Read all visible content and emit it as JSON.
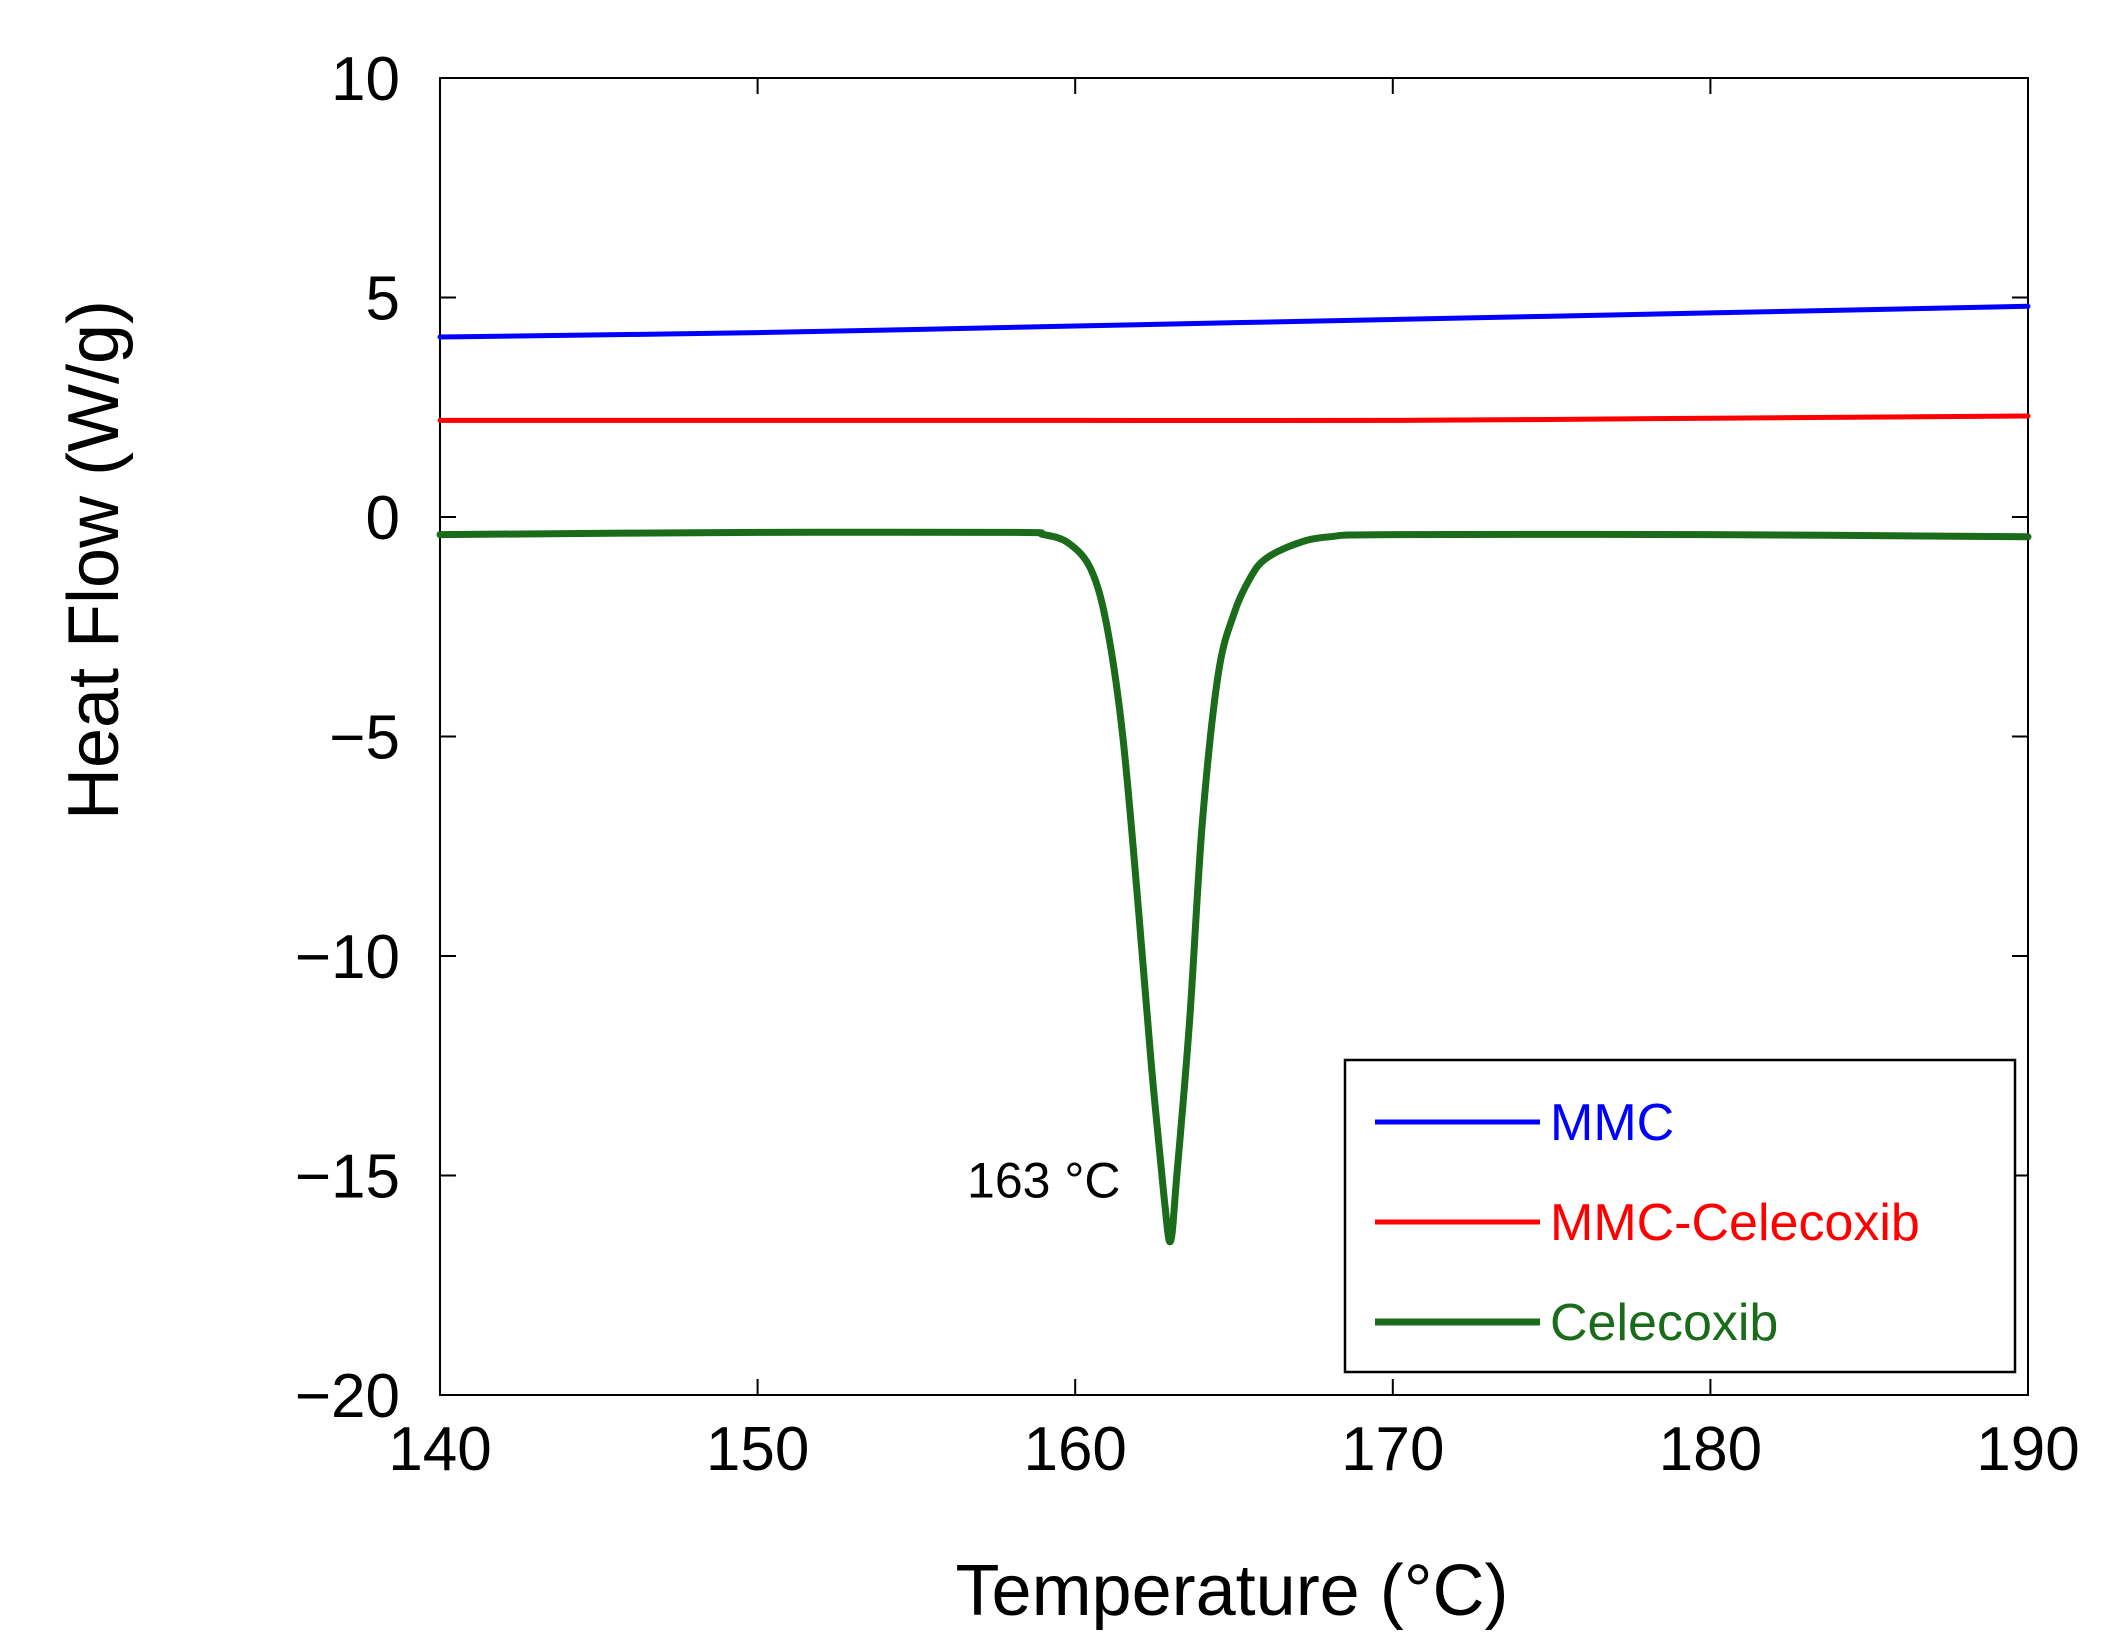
{
  "chart_data": {
    "type": "line",
    "title": "",
    "xlabel": "Temperature (°C)",
    "ylabel": "Heat Flow (W/g)",
    "xlim": [
      140,
      190
    ],
    "ylim": [
      -20,
      10
    ],
    "xticks": [
      140,
      150,
      160,
      170,
      180,
      190
    ],
    "yticks": [
      10,
      5,
      0,
      -5,
      -10,
      -15,
      -20
    ],
    "xtick_labels": [
      "140",
      "150",
      "160",
      "170",
      "180",
      "190"
    ],
    "ytick_labels": [
      "10",
      "5",
      "0",
      "−5",
      "−10",
      "−15",
      "−20"
    ],
    "grid": false,
    "legend_position": "bottom-right",
    "series": [
      {
        "name": "MMC",
        "color": "#0000ff",
        "x": [
          140,
          150,
          160,
          170,
          180,
          190
        ],
        "y": [
          4.1,
          4.2,
          4.35,
          4.5,
          4.65,
          4.8
        ]
      },
      {
        "name": "MMC-Celecoxib",
        "color": "#ff0000",
        "x": [
          140,
          150,
          160,
          170,
          180,
          190
        ],
        "y": [
          2.2,
          2.2,
          2.2,
          2.2,
          2.25,
          2.3
        ]
      },
      {
        "name": "Celecoxib",
        "color": "#1a6b1a",
        "x": [
          140,
          150,
          158,
          159,
          159.8,
          160.5,
          161,
          161.5,
          162,
          162.4,
          162.8,
          163,
          163.2,
          163.6,
          164,
          164.5,
          165,
          165.5,
          166,
          167,
          168,
          170,
          180,
          190
        ],
        "y": [
          -0.4,
          -0.35,
          -0.35,
          -0.4,
          -0.6,
          -1.2,
          -2.5,
          -5.0,
          -9.0,
          -12.5,
          -15.5,
          -16.5,
          -15.0,
          -11.5,
          -7.0,
          -3.6,
          -2.2,
          -1.4,
          -0.95,
          -0.6,
          -0.45,
          -0.4,
          -0.4,
          -0.45
        ]
      }
    ],
    "annotations": [
      {
        "text": "163 °C",
        "x": 163,
        "y": -15
      }
    ]
  }
}
